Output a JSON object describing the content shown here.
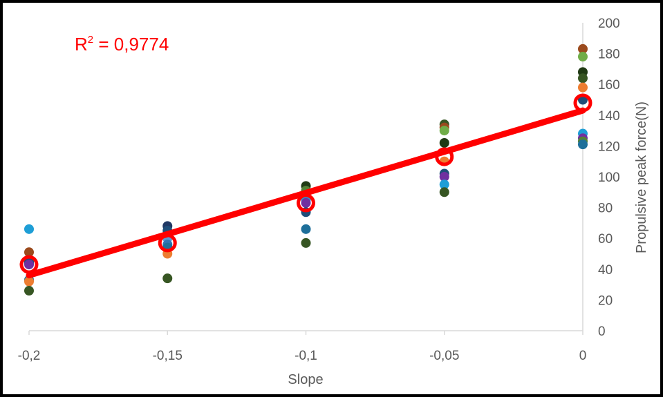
{
  "chart_data": {
    "type": "scatter",
    "xlabel": "Slope",
    "ylabel": "Propulsive peak force(N)",
    "xlim": [
      -0.2,
      0
    ],
    "ylim": [
      0,
      200
    ],
    "x_ticks": [
      "-0,2",
      "-0,15",
      "-0,1",
      "-0,05",
      "0"
    ],
    "x_tick_values": [
      -0.2,
      -0.15,
      -0.1,
      -0.05,
      0
    ],
    "y_ticks": [
      "0",
      "20",
      "40",
      "60",
      "80",
      "100",
      "120",
      "140",
      "160",
      "180",
      "200"
    ],
    "y_tick_values": [
      0,
      20,
      40,
      60,
      80,
      100,
      120,
      140,
      160,
      180,
      200
    ],
    "y_axis_position": "right",
    "grid": false,
    "legend": "none",
    "annotation": {
      "prefix": "R",
      "superscript": "2",
      "suffix": " = 0,9774",
      "color": "#ff0000"
    },
    "points": [
      {
        "x": -0.2,
        "y": 66,
        "color": "#1e9ed6"
      },
      {
        "x": -0.2,
        "y": 51,
        "color": "#9b4a1d"
      },
      {
        "x": -0.2,
        "y": 45,
        "color": "#264478"
      },
      {
        "x": -0.2,
        "y": 44,
        "color": "#1f4e79"
      },
      {
        "x": -0.2,
        "y": 43,
        "color": "#7030a0"
      },
      {
        "x": -0.2,
        "y": 33,
        "color": "#1e6f9a"
      },
      {
        "x": -0.2,
        "y": 32,
        "color": "#ed7d31"
      },
      {
        "x": -0.2,
        "y": 26,
        "color": "#375623"
      },
      {
        "x": -0.15,
        "y": 68,
        "color": "#203864"
      },
      {
        "x": -0.15,
        "y": 65,
        "color": "#1f4e79"
      },
      {
        "x": -0.15,
        "y": 60,
        "color": "#5b9bd5"
      },
      {
        "x": -0.15,
        "y": 56,
        "color": "#2e75b6"
      },
      {
        "x": -0.15,
        "y": 54,
        "color": "#1e6f9a"
      },
      {
        "x": -0.15,
        "y": 50,
        "color": "#ed7d31"
      },
      {
        "x": -0.15,
        "y": 34,
        "color": "#375623"
      },
      {
        "x": -0.1,
        "y": 94,
        "color": "#203a14"
      },
      {
        "x": -0.1,
        "y": 91,
        "color": "#548235"
      },
      {
        "x": -0.1,
        "y": 85,
        "color": "#1e9ed6"
      },
      {
        "x": -0.1,
        "y": 83,
        "color": "#7030a0"
      },
      {
        "x": -0.1,
        "y": 77,
        "color": "#1f4e79"
      },
      {
        "x": -0.1,
        "y": 66,
        "color": "#1e6f9a"
      },
      {
        "x": -0.1,
        "y": 57,
        "color": "#375623"
      },
      {
        "x": -0.05,
        "y": 134,
        "color": "#375623"
      },
      {
        "x": -0.05,
        "y": 132,
        "color": "#9b4a1d"
      },
      {
        "x": -0.05,
        "y": 130,
        "color": "#70ad47"
      },
      {
        "x": -0.05,
        "y": 122,
        "color": "#203a14"
      },
      {
        "x": -0.05,
        "y": 110,
        "color": "#ed7d31"
      },
      {
        "x": -0.05,
        "y": 102,
        "color": "#1f4e79"
      },
      {
        "x": -0.05,
        "y": 100,
        "color": "#7030a0"
      },
      {
        "x": -0.05,
        "y": 95,
        "color": "#1e9ed6"
      },
      {
        "x": -0.05,
        "y": 90,
        "color": "#375623"
      },
      {
        "x": 0,
        "y": 183,
        "color": "#9b4a1d"
      },
      {
        "x": 0,
        "y": 178,
        "color": "#70ad47"
      },
      {
        "x": 0,
        "y": 168,
        "color": "#203a14"
      },
      {
        "x": 0,
        "y": 164,
        "color": "#375623"
      },
      {
        "x": 0,
        "y": 158,
        "color": "#ed7d31"
      },
      {
        "x": 0,
        "y": 150,
        "color": "#1f4e79"
      },
      {
        "x": 0,
        "y": 128,
        "color": "#1e9ed6"
      },
      {
        "x": 0,
        "y": 125,
        "color": "#7030a0"
      },
      {
        "x": 0,
        "y": 123,
        "color": "#548235"
      },
      {
        "x": 0,
        "y": 121,
        "color": "#1e6f9a"
      }
    ],
    "mean_markers": {
      "color": "#ff0000",
      "points": [
        {
          "x": -0.2,
          "y": 43
        },
        {
          "x": -0.15,
          "y": 57
        },
        {
          "x": -0.1,
          "y": 83
        },
        {
          "x": -0.05,
          "y": 113
        },
        {
          "x": 0,
          "y": 148
        }
      ]
    },
    "trendline": {
      "color": "#ff0000",
      "from": {
        "x": -0.2,
        "y": 36
      },
      "to": {
        "x": 0,
        "y": 143
      }
    }
  }
}
